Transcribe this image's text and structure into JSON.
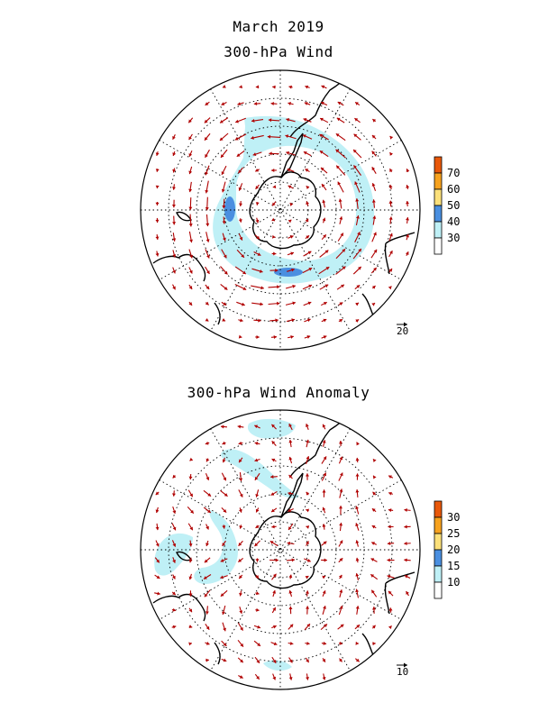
{
  "title_line1": "March 2019",
  "panels": [
    {
      "id": "top",
      "title": "300-hPa Wind",
      "reference_vector_label": "20",
      "colorbar": {
        "labels": [
          "70",
          "60",
          "50",
          "40",
          "30"
        ],
        "colors": [
          "#e8580a",
          "#f7a21e",
          "#fbe07a",
          "#4a8fe0",
          "#bff0f6",
          "#ffffff"
        ]
      }
    },
    {
      "id": "bottom",
      "title": "300-hPa Wind Anomaly",
      "reference_vector_label": "10",
      "colorbar": {
        "labels": [
          "30",
          "25",
          "20",
          "15",
          "10"
        ],
        "colors": [
          "#e8580a",
          "#f7a21e",
          "#fbe07a",
          "#4a8fe0",
          "#bff0f6",
          "#ffffff"
        ]
      }
    }
  ],
  "colors": {
    "arrow": "#b00000",
    "shade": "#bff0f6",
    "coast": "#000000",
    "grid": "#000000"
  }
}
